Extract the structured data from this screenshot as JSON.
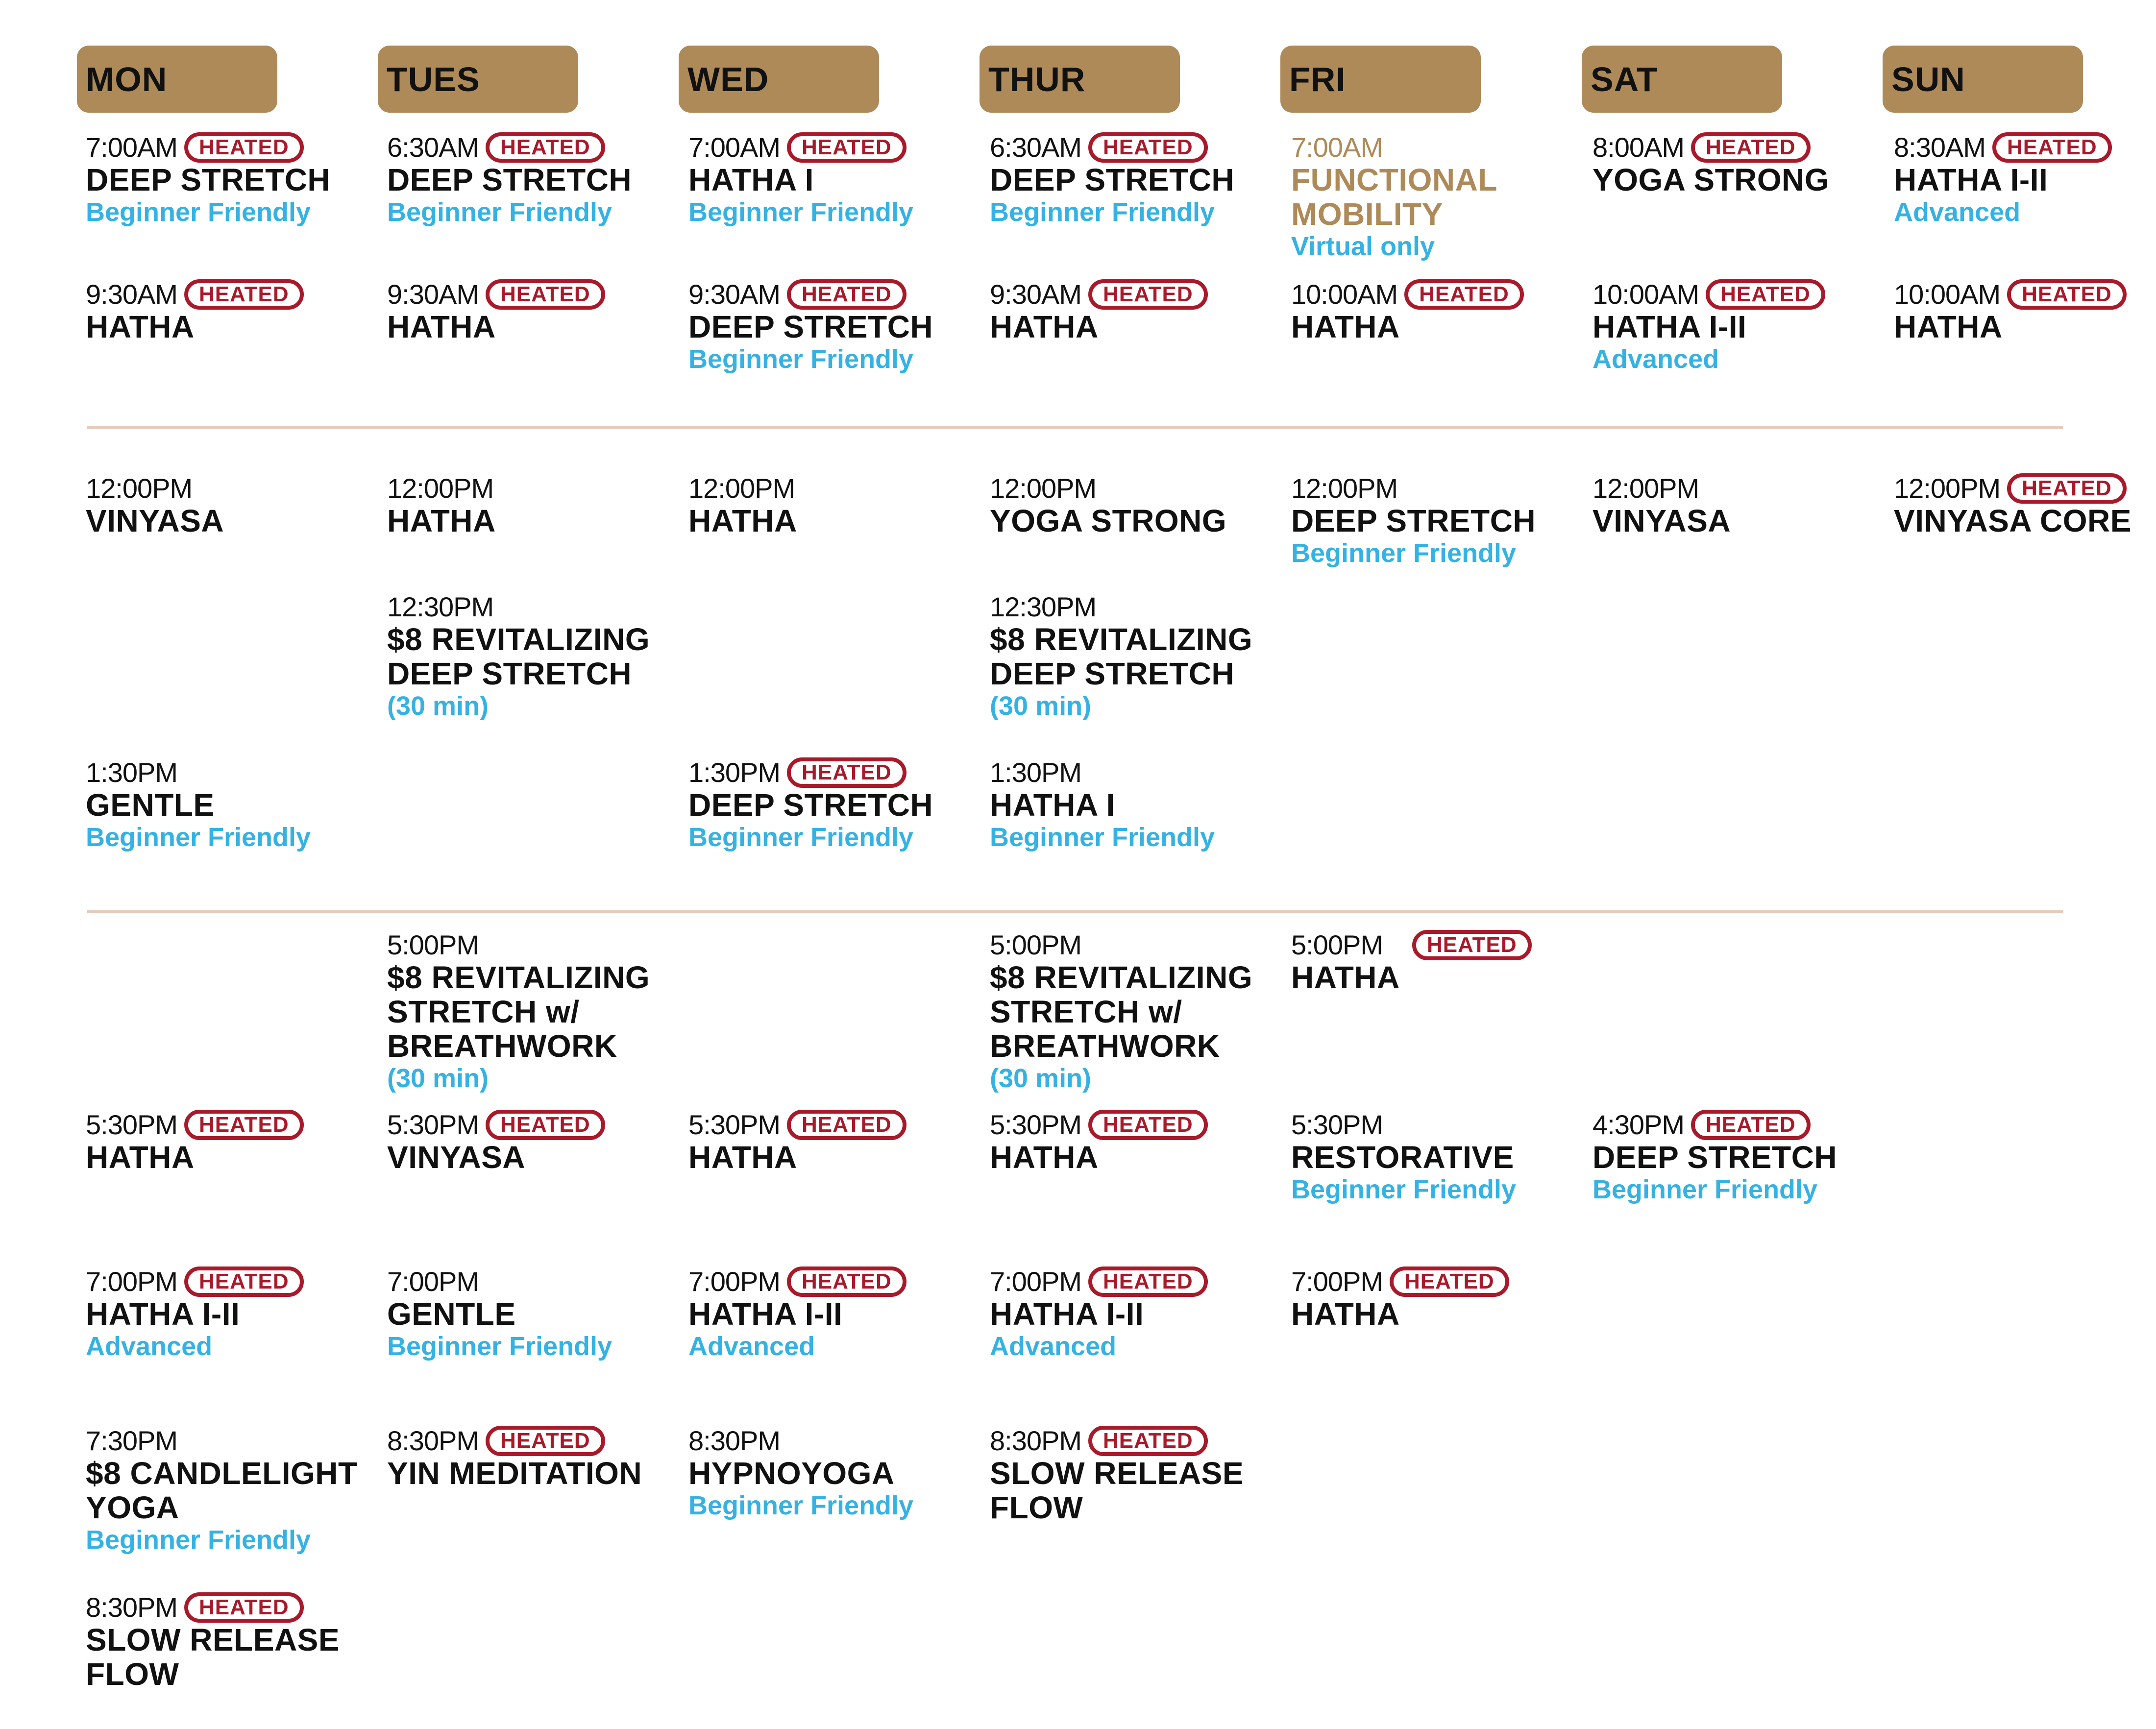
{
  "colors": {
    "header_bg": "#ad8a58",
    "heated": "#a8192a",
    "note": "#34b2e4",
    "divider": "#e6cabb",
    "text": "#111111"
  },
  "heated_label": "HEATED",
  "days": [
    {
      "name": "MON",
      "classes": [
        {
          "time": "7:00AM",
          "heated": true,
          "name": "DEEP STRETCH",
          "note": "Beginner Friendly"
        },
        {
          "time": "9:30AM",
          "heated": true,
          "name": "HATHA",
          "note": ""
        },
        {
          "time": "12:00PM",
          "heated": false,
          "name": "VINYASA",
          "note": ""
        },
        {
          "time": "1:30PM",
          "heated": false,
          "name": "GENTLE",
          "note": "Beginner Friendly"
        },
        {
          "time": "5:30PM",
          "heated": true,
          "name": "HATHA",
          "note": ""
        },
        {
          "time": "7:00PM",
          "heated": true,
          "name": "HATHA I-II",
          "note": "Advanced"
        },
        {
          "time": "7:30PM",
          "heated": false,
          "name": "$8 CANDLELIGHT\nYOGA",
          "note": "Beginner Friendly"
        },
        {
          "time": "8:30PM",
          "heated": true,
          "name": "SLOW RELEASE\nFLOW",
          "note": ""
        }
      ]
    },
    {
      "name": "TUES",
      "classes": [
        {
          "time": "6:30AM",
          "heated": true,
          "name": "DEEP STRETCH",
          "note": "Beginner Friendly"
        },
        {
          "time": "9:30AM",
          "heated": true,
          "name": "HATHA",
          "note": ""
        },
        {
          "time": "12:00PM",
          "heated": false,
          "name": "HATHA",
          "note": ""
        },
        {
          "time": "12:30PM",
          "heated": false,
          "name": "$8 REVITALIZING\nDEEP STRETCH",
          "note": "(30 min)"
        },
        {
          "time": "5:00PM",
          "heated": false,
          "name": "$8 REVITALIZING\nSTRETCH w/\nBREATHWORK",
          "note": "(30 min)"
        },
        {
          "time": "5:30PM",
          "heated": true,
          "name": "VINYASA",
          "note": ""
        },
        {
          "time": "7:00PM",
          "heated": false,
          "name": "GENTLE",
          "note": "Beginner Friendly"
        },
        {
          "time": "8:30PM",
          "heated": true,
          "name": "YIN MEDITATION",
          "note": ""
        }
      ]
    },
    {
      "name": "WED",
      "classes": [
        {
          "time": "7:00AM",
          "heated": true,
          "name": "HATHA I",
          "note": "Beginner Friendly"
        },
        {
          "time": "9:30AM",
          "heated": true,
          "name": "DEEP STRETCH",
          "note": "Beginner Friendly"
        },
        {
          "time": "12:00PM",
          "heated": false,
          "name": "HATHA",
          "note": ""
        },
        {
          "time": "1:30PM",
          "heated": true,
          "name": "DEEP STRETCH",
          "note": "Beginner Friendly"
        },
        {
          "time": "5:30PM",
          "heated": true,
          "name": "HATHA",
          "note": ""
        },
        {
          "time": "7:00PM",
          "heated": true,
          "name": "HATHA I-II",
          "note": "Advanced"
        },
        {
          "time": "8:30PM",
          "heated": false,
          "name": "HYPNOYOGA",
          "note": "Beginner Friendly"
        }
      ]
    },
    {
      "name": "THUR",
      "classes": [
        {
          "time": "6:30AM",
          "heated": true,
          "name": "DEEP STRETCH",
          "note": "Beginner Friendly"
        },
        {
          "time": "9:30AM",
          "heated": true,
          "name": "HATHA",
          "note": ""
        },
        {
          "time": "12:00PM",
          "heated": false,
          "name": "YOGA STRONG",
          "note": ""
        },
        {
          "time": "12:30PM",
          "heated": false,
          "name": "$8 REVITALIZING\nDEEP STRETCH",
          "note": "(30 min)"
        },
        {
          "time": "1:30PM",
          "heated": false,
          "name": "HATHA I",
          "note": "Beginner Friendly"
        },
        {
          "time": "5:00PM",
          "heated": false,
          "name": "$8 REVITALIZING\nSTRETCH w/\nBREATHWORK",
          "note": "(30 min)"
        },
        {
          "time": "5:30PM",
          "heated": true,
          "name": "HATHA",
          "note": ""
        },
        {
          "time": "7:00PM",
          "heated": true,
          "name": "HATHA I-II",
          "note": "Advanced"
        },
        {
          "time": "8:30PM",
          "heated": true,
          "name": "SLOW RELEASE\nFLOW",
          "note": ""
        }
      ]
    },
    {
      "name": "FRI",
      "classes": [
        {
          "time": "7:00AM",
          "heated": false,
          "name": "FUNCTIONAL\nMOBILITY",
          "note": "Virtual only",
          "highlight": "#ad8a58"
        },
        {
          "time": "10:00AM",
          "heated": true,
          "name": "HATHA",
          "note": ""
        },
        {
          "time": "12:00PM",
          "heated": false,
          "name": "DEEP STRETCH",
          "note": "Beginner Friendly"
        },
        {
          "time": "5:00PM",
          "heated": true,
          "name": "HATHA",
          "note": ""
        },
        {
          "time": "5:30PM",
          "heated": false,
          "name": "RESTORATIVE",
          "note": "Beginner Friendly"
        },
        {
          "time": "7:00PM",
          "heated": true,
          "name": "HATHA",
          "note": ""
        }
      ]
    },
    {
      "name": "SAT",
      "classes": [
        {
          "time": "8:00AM",
          "heated": true,
          "name": "YOGA STRONG",
          "note": ""
        },
        {
          "time": "10:00AM",
          "heated": true,
          "name": "HATHA I-II",
          "note": "Advanced"
        },
        {
          "time": "12:00PM",
          "heated": false,
          "name": "VINYASA",
          "note": ""
        },
        {
          "time": "4:30PM",
          "heated": true,
          "name": "DEEP STRETCH",
          "note": "Beginner Friendly"
        }
      ]
    },
    {
      "name": "SUN",
      "classes": [
        {
          "time": "8:30AM",
          "heated": true,
          "name": "HATHA I-II",
          "note": "Advanced"
        },
        {
          "time": "10:00AM",
          "heated": true,
          "name": "HATHA",
          "note": ""
        },
        {
          "time": "12:00PM",
          "heated": true,
          "name": "VINYASA CORE",
          "note": ""
        }
      ]
    }
  ]
}
